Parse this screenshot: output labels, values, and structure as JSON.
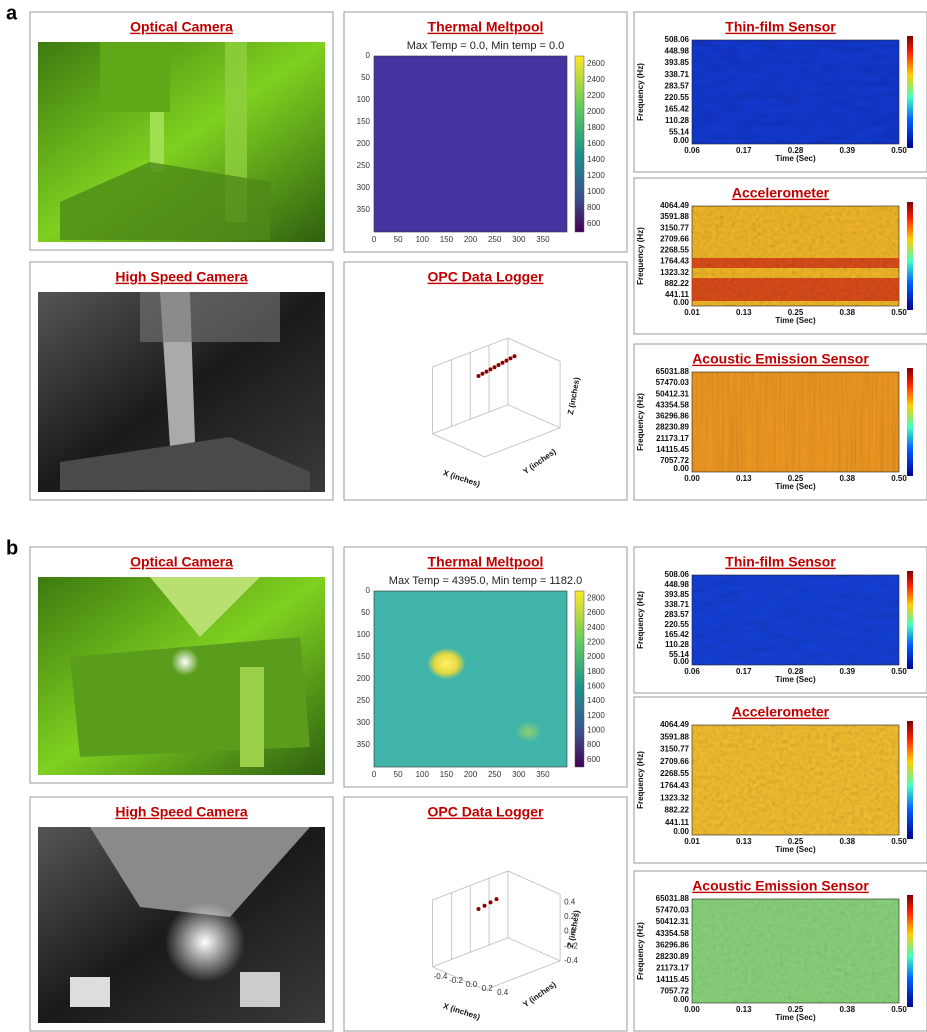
{
  "panels": [
    {
      "label": "a",
      "optical": {
        "title": "Optical Camera"
      },
      "high_speed": {
        "title": "High Speed Camera"
      },
      "thermal": {
        "title": "Thermal Meltpool",
        "subtitle": "Max Temp = 0.0, Min temp = 0.0",
        "xlim": [
          0,
          400
        ],
        "ylim": [
          0,
          400
        ],
        "xticks": [
          0,
          50,
          100,
          150,
          200,
          250,
          300,
          350
        ],
        "yticks": [
          0,
          50,
          100,
          150,
          200,
          250,
          300,
          350
        ],
        "clim": [
          500,
          2700
        ],
        "cticks": [
          2600,
          2400,
          2200,
          2000,
          1800,
          1600,
          1400,
          1200,
          1000,
          800,
          600
        ]
      },
      "opc": {
        "title": "OPC Data Logger",
        "x_label": "X (inches)",
        "y_label": "Y (inches)",
        "z_label": "Z (inches)"
      },
      "thin_film": {
        "title": "Thin-film Sensor",
        "y_label": "Frequency (Hz)",
        "x_label": "Time (Sec)",
        "yticks": [
          "508.06",
          "448.98",
          "393.85",
          "338.71",
          "283.57",
          "220.55",
          "165.42",
          "110.28",
          "55.14",
          "0.00"
        ],
        "xticks": [
          "0.06",
          "0.17",
          "0.28",
          "0.39",
          "0.50"
        ]
      },
      "accelerometer": {
        "title": "Accelerometer",
        "y_label": "Frequency (Hz)",
        "x_label": "Time (Sec)",
        "yticks": [
          "4064.49",
          "3591.88",
          "3150.77",
          "2709.66",
          "2268.55",
          "1764.43",
          "1323.32",
          "882.22",
          "441.11",
          "0.00"
        ],
        "xticks": [
          "0.01",
          "0.13",
          "0.25",
          "0.38",
          "0.50"
        ]
      },
      "acoustic": {
        "title": "Acoustic Emission Sensor",
        "y_label": "Frequency (Hz)",
        "x_label": "Time (Sec)",
        "yticks": [
          "65031.88",
          "57470.03",
          "50412.31",
          "43354.58",
          "36296.86",
          "28230.89",
          "21173.17",
          "14115.45",
          "7057.72",
          "0.00"
        ],
        "xticks": [
          "0.00",
          "0.13",
          "0.25",
          "0.38",
          "0.50"
        ]
      }
    },
    {
      "label": "b",
      "optical": {
        "title": "Optical Camera"
      },
      "high_speed": {
        "title": "High Speed Camera"
      },
      "thermal": {
        "title": "Thermal Meltpool",
        "subtitle": "Max Temp = 4395.0, Min temp = 1182.0",
        "xlim": [
          0,
          400
        ],
        "ylim": [
          0,
          400
        ],
        "xticks": [
          0,
          50,
          100,
          150,
          200,
          250,
          300,
          350
        ],
        "yticks": [
          0,
          50,
          100,
          150,
          200,
          250,
          300,
          350
        ],
        "clim": [
          500,
          2900
        ],
        "cticks": [
          2800,
          2600,
          2400,
          2200,
          2000,
          1800,
          1600,
          1400,
          1200,
          1000,
          800,
          600
        ]
      },
      "opc": {
        "title": "OPC Data Logger",
        "x_label": "X (inches)",
        "y_label": "Y (inches)",
        "z_label": "Z (inches)",
        "z_ticks": [
          "0.4",
          "0.2",
          "0.0",
          "-0.2",
          "-0.4"
        ],
        "x_ticks": [
          "-0.4",
          "-0.2",
          "0.0",
          "0.2",
          "0.4"
        ]
      },
      "thin_film": {
        "title": "Thin-film Sensor",
        "y_label": "Frequency (Hz)",
        "x_label": "Time (Sec)",
        "yticks": [
          "508.06",
          "448.98",
          "393.85",
          "338.71",
          "283.57",
          "220.55",
          "165.42",
          "110.28",
          "55.14",
          "0.00"
        ],
        "xticks": [
          "0.06",
          "0.17",
          "0.28",
          "0.39",
          "0.50"
        ]
      },
      "accelerometer": {
        "title": "Accelerometer",
        "y_label": "Frequency (Hz)",
        "x_label": "Time (Sec)",
        "yticks": [
          "4064.49",
          "3591.88",
          "3150.77",
          "2709.66",
          "2268.55",
          "1764.43",
          "1323.32",
          "882.22",
          "441.11",
          "0.00"
        ],
        "xticks": [
          "0.01",
          "0.13",
          "0.25",
          "0.38",
          "0.50"
        ]
      },
      "acoustic": {
        "title": "Acoustic Emission Sensor",
        "y_label": "Frequency (Hz)",
        "x_label": "Time (Sec)",
        "yticks": [
          "65031.88",
          "57470.03",
          "50412.31",
          "43354.58",
          "36296.86",
          "28230.89",
          "21173.17",
          "14115.45",
          "7057.72",
          "0.00"
        ],
        "xticks": [
          "0.00",
          "0.13",
          "0.25",
          "0.38",
          "0.50"
        ]
      }
    }
  ]
}
